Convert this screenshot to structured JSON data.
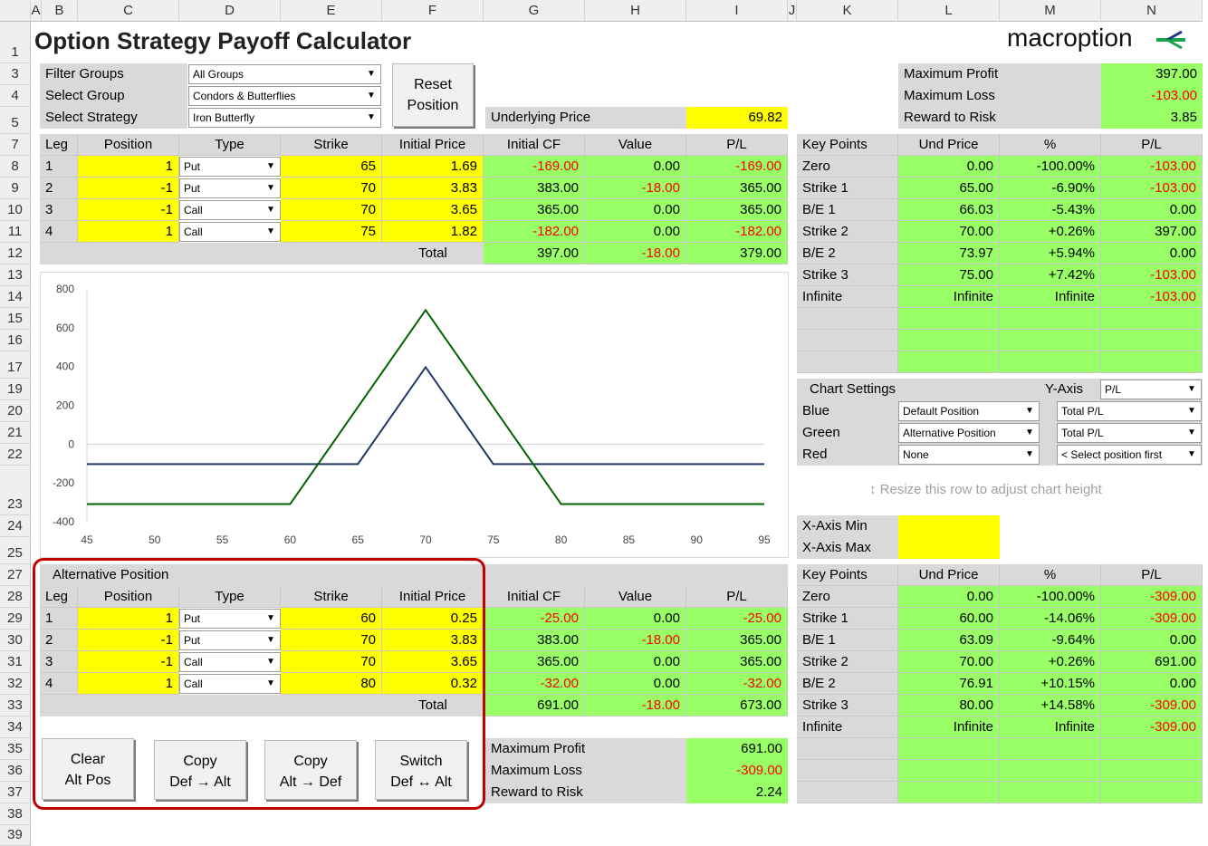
{
  "title": "Option Strategy Payoff Calculator",
  "brand": "macroption",
  "col_headers": [
    "A",
    "B",
    "C",
    "D",
    "E",
    "F",
    "G",
    "H",
    "I",
    "J",
    "K",
    "L",
    "M",
    "N"
  ],
  "row_headers": [
    "1",
    "3",
    "4",
    "5",
    "7",
    "8",
    "9",
    "10",
    "11",
    "12",
    "13",
    "14",
    "15",
    "16",
    "17",
    "19",
    "20",
    "21",
    "22",
    "23",
    "24",
    "25",
    "27",
    "28",
    "29",
    "30",
    "31",
    "32",
    "33",
    "34",
    "35",
    "36",
    "37",
    "38",
    "39"
  ],
  "filters": {
    "filter_groups_label": "Filter Groups",
    "filter_groups_value": "All Groups",
    "select_group_label": "Select Group",
    "select_group_value": "Condors & Butterflies",
    "select_strategy_label": "Select Strategy",
    "select_strategy_value": "Iron Butterfly",
    "reset_line1": "Reset",
    "reset_line2": "Position"
  },
  "underlying": {
    "label": "Underlying Price",
    "value": "69.82"
  },
  "summary_top": {
    "max_profit_label": "Maximum Profit",
    "max_profit": "397.00",
    "max_loss_label": "Maximum Loss",
    "max_loss": "-103.00",
    "rr_label": "Reward to Risk",
    "rr": "3.85"
  },
  "legs_header": [
    "Leg",
    "Position",
    "Type",
    "Strike",
    "Initial Price",
    "Initial CF",
    "Value",
    "P/L"
  ],
  "legs": [
    [
      "1",
      "1",
      "Put",
      "65",
      "1.69",
      "-169.00",
      "0.00",
      "-169.00"
    ],
    [
      "2",
      "-1",
      "Put",
      "70",
      "3.83",
      "383.00",
      "-18.00",
      "365.00"
    ],
    [
      "3",
      "-1",
      "Call",
      "70",
      "3.65",
      "365.00",
      "0.00",
      "365.00"
    ],
    [
      "4",
      "1",
      "Call",
      "75",
      "1.82",
      "-182.00",
      "0.00",
      "-182.00"
    ]
  ],
  "legs_total": {
    "label": "Total",
    "cf": "397.00",
    "value": "-18.00",
    "pl": "379.00"
  },
  "keypoints_header": [
    "Key Points",
    "Und Price",
    "%",
    "P/L"
  ],
  "keypoints": [
    [
      "Zero",
      "0.00",
      "-100.00%",
      "-103.00"
    ],
    [
      "Strike 1",
      "65.00",
      "-6.90%",
      "-103.00"
    ],
    [
      "B/E 1",
      "66.03",
      "-5.43%",
      "0.00"
    ],
    [
      "Strike 2",
      "70.00",
      "+0.26%",
      "397.00"
    ],
    [
      "B/E 2",
      "73.97",
      "+5.94%",
      "0.00"
    ],
    [
      "Strike 3",
      "75.00",
      "+7.42%",
      "-103.00"
    ],
    [
      "Infinite",
      "Infinite",
      "Infinite",
      "-103.00"
    ]
  ],
  "chart_settings": {
    "title": "Chart Settings",
    "yaxis_label": "Y-Axis",
    "yaxis_value": "P/L",
    "blue_label": "Blue",
    "blue_pos": "Default Position",
    "blue_val": "Total P/L",
    "green_label": "Green",
    "green_pos": "Alternative Position",
    "green_val": "Total P/L",
    "red_label": "Red",
    "red_pos": "None",
    "red_val": "< Select position first"
  },
  "resize_hint": "Resize this row to adjust chart height",
  "xaxis": {
    "min_label": "X-Axis Min",
    "max_label": "X-Axis Max"
  },
  "alt": {
    "title": "Alternative Position",
    "legs": [
      [
        "1",
        "1",
        "Put",
        "60",
        "0.25",
        "-25.00",
        "0.00",
        "-25.00"
      ],
      [
        "2",
        "-1",
        "Put",
        "70",
        "3.83",
        "383.00",
        "-18.00",
        "365.00"
      ],
      [
        "3",
        "-1",
        "Call",
        "70",
        "3.65",
        "365.00",
        "0.00",
        "365.00"
      ],
      [
        "4",
        "1",
        "Call",
        "80",
        "0.32",
        "-32.00",
        "0.00",
        "-32.00"
      ]
    ],
    "total": {
      "label": "Total",
      "cf": "691.00",
      "value": "-18.00",
      "pl": "673.00"
    },
    "keypoints": [
      [
        "Zero",
        "0.00",
        "-100.00%",
        "-309.00"
      ],
      [
        "Strike 1",
        "60.00",
        "-14.06%",
        "-309.00"
      ],
      [
        "B/E 1",
        "63.09",
        "-9.64%",
        "0.00"
      ],
      [
        "Strike 2",
        "70.00",
        "+0.26%",
        "691.00"
      ],
      [
        "B/E 2",
        "76.91",
        "+10.15%",
        "0.00"
      ],
      [
        "Strike 3",
        "80.00",
        "+14.58%",
        "-309.00"
      ],
      [
        "Infinite",
        "Infinite",
        "Infinite",
        "-309.00"
      ]
    ],
    "summary": {
      "max_profit_label": "Maximum Profit",
      "max_profit": "691.00",
      "max_loss_label": "Maximum Loss",
      "max_loss": "-309.00",
      "rr_label": "Reward to Risk",
      "rr": "2.24"
    }
  },
  "buttons": {
    "clear": [
      "Clear",
      "Alt Pos"
    ],
    "copy_def_alt": [
      "Copy",
      "Def → Alt"
    ],
    "copy_alt_def": [
      "Copy",
      "Alt → Def"
    ],
    "switch": [
      "Switch",
      "Def ↔ Alt"
    ]
  },
  "colors": {
    "blue_series": "#203864",
    "green_series": "#006400",
    "negative": "#ff0000",
    "highlight": "#c00000"
  },
  "chart_data": {
    "type": "line",
    "xlim": [
      45,
      95
    ],
    "ylim": [
      -400,
      800
    ],
    "x_ticks": [
      "45",
      "50",
      "55",
      "60",
      "65",
      "70",
      "75",
      "80",
      "85",
      "90",
      "95"
    ],
    "y_ticks": [
      "800",
      "600",
      "400",
      "200",
      "0",
      "-200",
      "-400"
    ],
    "grid": false,
    "series": [
      {
        "color": "#203864",
        "x": [
          45,
          65,
          70,
          75,
          95
        ],
        "y": [
          -103,
          -103,
          397,
          -103,
          -103
        ]
      },
      {
        "color": "#006400",
        "x": [
          45,
          60,
          70,
          80,
          95
        ],
        "y": [
          -309,
          -309,
          691,
          -309,
          -309
        ]
      }
    ]
  }
}
